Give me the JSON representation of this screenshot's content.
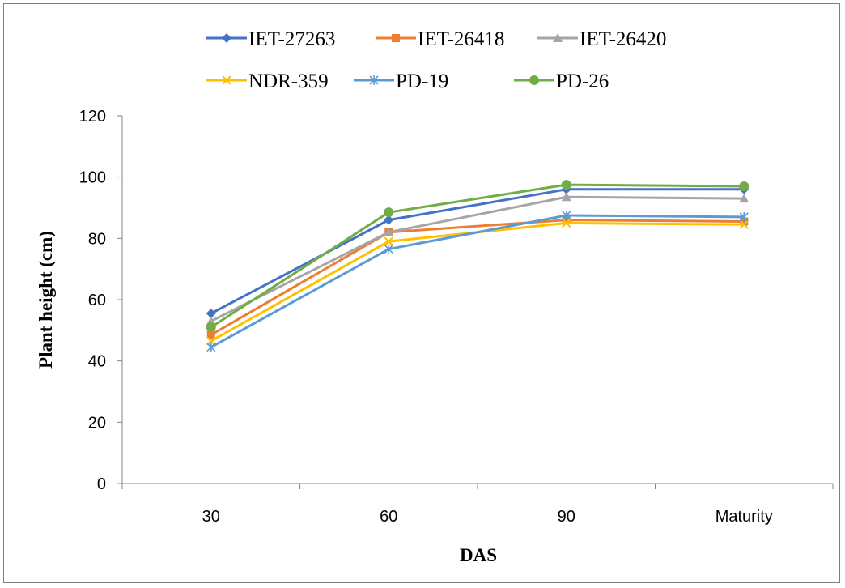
{
  "chart_data": {
    "type": "line",
    "title": "",
    "xlabel": "DAS",
    "ylabel": "Plant height (cm)",
    "categories": [
      "30",
      "60",
      "90",
      "Maturity"
    ],
    "ylim": [
      0,
      120
    ],
    "yticks": [
      "0",
      "20",
      "40",
      "60",
      "80",
      "100",
      "120"
    ],
    "grid": false,
    "legend_position": "top",
    "series": [
      {
        "name": "IET-27263",
        "color": "#4472c4",
        "marker": "diamond",
        "values": [
          55.5,
          86.0,
          96.0,
          96.0
        ]
      },
      {
        "name": "IET-26418",
        "color": "#ed7d31",
        "marker": "square",
        "values": [
          48.5,
          82.0,
          86.0,
          85.5
        ]
      },
      {
        "name": "IET-26420",
        "color": "#a5a5a5",
        "marker": "triangle",
        "values": [
          53.0,
          82.0,
          93.5,
          93.0
        ]
      },
      {
        "name": "NDR-359",
        "color": "#ffc000",
        "marker": "x",
        "values": [
          46.5,
          79.0,
          85.0,
          84.5
        ]
      },
      {
        "name": "PD-19",
        "color": "#5b9bd5",
        "marker": "star",
        "values": [
          44.5,
          76.5,
          87.5,
          87.0
        ]
      },
      {
        "name": "PD-26",
        "color": "#70ad47",
        "marker": "circle",
        "values": [
          51.0,
          88.5,
          97.5,
          97.0
        ]
      }
    ]
  }
}
